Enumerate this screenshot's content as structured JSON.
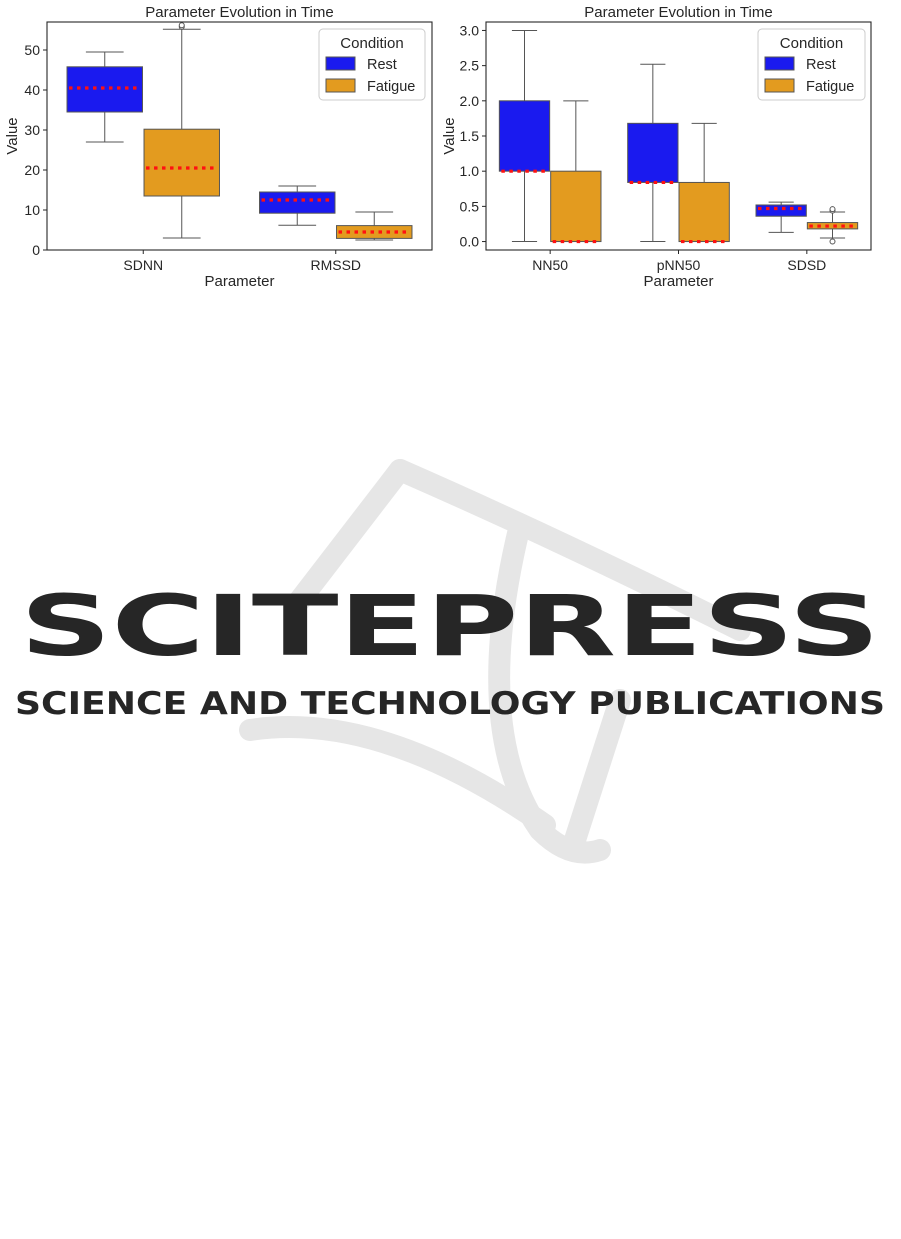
{
  "watermark": {
    "line1": "SCITEPRESS",
    "line2": "SCIENCE AND TECHNOLOGY PUBLICATIONS"
  },
  "chart_data": [
    {
      "type": "box",
      "title": "Parameter Evolution in Time",
      "xlabel": "Parameter",
      "ylabel": "Value",
      "ylim": [
        0,
        57
      ],
      "yticks": [
        0,
        10,
        20,
        30,
        40,
        50
      ],
      "tick_decimals": 0,
      "categories": [
        "SDNN",
        "RMSSD"
      ],
      "legend": {
        "title": "Condition",
        "position": "top-right"
      },
      "grid": false,
      "series": [
        {
          "name": "Rest",
          "color": "#1a1aef",
          "boxes": [
            {
              "whisker_low": 27,
              "q1": 34.5,
              "median": 40.5,
              "q3": 45.8,
              "whisker_high": 49.5,
              "outliers": []
            },
            {
              "whisker_low": 6.2,
              "q1": 9.2,
              "median": 12.5,
              "q3": 14.5,
              "whisker_high": 16,
              "outliers": []
            }
          ]
        },
        {
          "name": "Fatigue",
          "color": "#e39b1f",
          "boxes": [
            {
              "whisker_low": 3,
              "q1": 13.5,
              "median": 20.5,
              "q3": 30.2,
              "whisker_high": 55.2,
              "outliers": [
                55.8,
                56.2
              ]
            },
            {
              "whisker_low": 2.5,
              "q1": 2.9,
              "median": 4.5,
              "q3": 6.1,
              "whisker_high": 9.5,
              "outliers": []
            }
          ]
        }
      ]
    },
    {
      "type": "box",
      "title": "Parameter Evolution in Time",
      "xlabel": "Parameter",
      "ylabel": "Value",
      "ylim": [
        -0.12,
        3.12
      ],
      "yticks": [
        0.0,
        0.5,
        1.0,
        1.5,
        2.0,
        2.5,
        3.0
      ],
      "tick_decimals": 1,
      "categories": [
        "NN50",
        "pNN50",
        "SDSD"
      ],
      "legend": {
        "title": "Condition",
        "position": "top-right"
      },
      "grid": false,
      "series": [
        {
          "name": "Rest",
          "color": "#1a1aef",
          "boxes": [
            {
              "whisker_low": 0,
              "q1": 1.0,
              "median": 1.0,
              "q3": 2.0,
              "whisker_high": 3.0,
              "outliers": []
            },
            {
              "whisker_low": 0,
              "q1": 0.84,
              "median": 0.84,
              "q3": 1.68,
              "whisker_high": 2.52,
              "outliers": []
            },
            {
              "whisker_low": 0.13,
              "q1": 0.36,
              "median": 0.47,
              "q3": 0.52,
              "whisker_high": 0.56,
              "outliers": []
            }
          ]
        },
        {
          "name": "Fatigue",
          "color": "#e39b1f",
          "boxes": [
            {
              "whisker_low": 0,
              "q1": 0,
              "median": 0,
              "q3": 1.0,
              "whisker_high": 2.0,
              "outliers": []
            },
            {
              "whisker_low": 0,
              "q1": 0,
              "median": 0,
              "q3": 0.84,
              "whisker_high": 1.68,
              "outliers": []
            },
            {
              "whisker_low": 0.05,
              "q1": 0.18,
              "median": 0.22,
              "q3": 0.27,
              "whisker_high": 0.42,
              "outliers": [
                0.0,
                0.44,
                0.46
              ]
            }
          ]
        }
      ]
    }
  ]
}
